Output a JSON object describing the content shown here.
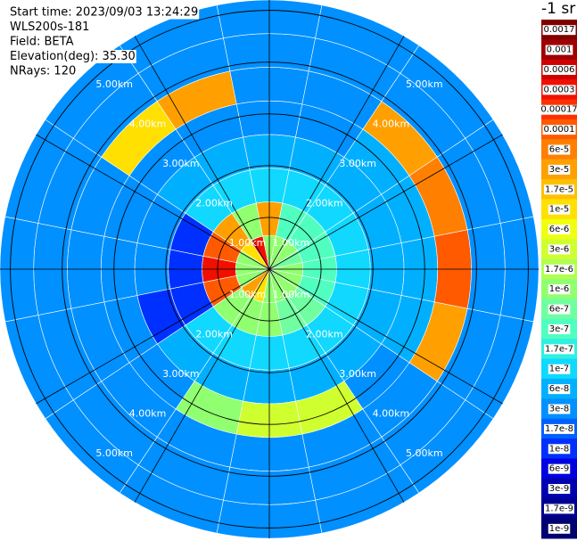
{
  "chart_data": {
    "type": "polar",
    "info": [
      "Start time: 2023/09/03 13:24:29",
      "WLS200s-181",
      "Field: BETA",
      "Elevation(deg): 35.30",
      "NRays: 120"
    ],
    "colorbar_title": "-1 sr",
    "theta": [
      0,
      22.5,
      45,
      67.5,
      90,
      112.5,
      135,
      157.5,
      180,
      202.5,
      225,
      247.5,
      270,
      292.5,
      315,
      337.5
    ],
    "r": [
      0,
      0.65,
      1.3,
      1.95,
      2.6,
      3.25,
      3.9,
      4.55
    ],
    "rlim": [
      0,
      5.2
    ],
    "rticks": [
      {
        "value": 1,
        "label": "1.00km"
      },
      {
        "value": 2,
        "label": "2.00km"
      },
      {
        "value": 3,
        "label": "3.00km"
      },
      {
        "value": 4,
        "label": "4.00km"
      },
      {
        "value": 5,
        "label": "5.00km"
      }
    ],
    "values": [
      [
        1e-06,
        3e-05,
        1e-07,
        6e-08,
        3e-08,
        3e-08,
        3e-08,
        3e-08
      ],
      [
        1e-06,
        3e-07,
        1e-07,
        6e-08,
        3e-08,
        3e-08,
        3e-08,
        3e-08
      ],
      [
        1e-06,
        3e-07,
        1e-07,
        6e-08,
        6e-08,
        3e-05,
        3e-08,
        3e-08
      ],
      [
        6e-07,
        3e-07,
        1e-07,
        6e-08,
        6e-08,
        6e-05,
        3e-08,
        3e-08
      ],
      [
        1e-06,
        3e-07,
        1e-07,
        6e-08,
        6e-08,
        0.0001,
        3e-08,
        3e-08
      ],
      [
        1e-06,
        3e-07,
        1e-07,
        6e-08,
        6e-08,
        3e-05,
        3e-08,
        3e-08
      ],
      [
        1e-06,
        6e-07,
        1e-07,
        6e-08,
        3e-08,
        3e-08,
        3e-08,
        3e-08
      ],
      [
        1e-06,
        6e-07,
        1e-07,
        6e-08,
        3e-06,
        3e-08,
        3e-08,
        3e-08
      ],
      [
        1e-06,
        1e-06,
        1e-07,
        6e-08,
        3e-06,
        3e-08,
        3e-08,
        3e-08
      ],
      [
        1e-05,
        1e-06,
        1e-07,
        6e-08,
        1e-06,
        3e-08,
        3e-08,
        3e-08
      ],
      [
        3e-05,
        1e-06,
        1e-07,
        6e-08,
        3e-08,
        3e-08,
        3e-08,
        3e-08
      ],
      [
        1e-06,
        0.0001,
        1e-08,
        1e-08,
        3e-08,
        3e-08,
        3e-08,
        3e-08
      ],
      [
        1e-06,
        0.0003,
        1e-08,
        3e-08,
        3e-08,
        3e-08,
        3e-08,
        3e-08
      ],
      [
        1e-06,
        0.0001,
        1e-08,
        3e-08,
        3e-08,
        3e-08,
        3e-08,
        3e-08
      ],
      [
        1e-05,
        3e-05,
        1e-07,
        6e-08,
        3e-08,
        1e-05,
        3e-08,
        3e-08
      ],
      [
        0.0003,
        1e-06,
        1e-07,
        6e-08,
        3e-08,
        3e-05,
        3e-08,
        3e-08
      ]
    ],
    "levels": [
      0.0017,
      0.001,
      0.0006,
      0.0003,
      0.00017,
      0.0001,
      {
        "value": 6e-05,
        "label": "6e-5"
      },
      {
        "value": 3e-05,
        "label": "3e-5"
      },
      {
        "value": 1.7e-05,
        "label": "1.7e-5"
      },
      {
        "value": 1e-05,
        "label": "1e-5"
      },
      {
        "value": 6e-06,
        "label": "6e-6"
      },
      {
        "value": 3e-06,
        "label": "3e-6"
      },
      {
        "value": 1.7e-06,
        "label": "1.7e-6"
      },
      {
        "value": 1e-06,
        "label": "1e-6"
      },
      {
        "value": 6e-07,
        "label": "6e-7"
      },
      {
        "value": 3e-07,
        "label": "3e-7"
      },
      {
        "value": 1.7e-07,
        "label": "1.7e-7"
      },
      {
        "value": 1e-07,
        "label": "1e-7"
      },
      {
        "value": 6e-08,
        "label": "6e-8"
      },
      {
        "value": 3e-08,
        "label": "3e-8"
      },
      {
        "value": 1.7e-08,
        "label": "1.7e-8"
      },
      {
        "value": 1e-08,
        "label": "1e-8"
      },
      {
        "value": 6e-09,
        "label": "6e-9"
      },
      {
        "value": 3e-09,
        "label": "3e-9"
      },
      {
        "value": 1.7e-09,
        "label": "1.7e-9"
      },
      {
        "value": 1e-09,
        "label": "1e-9"
      }
    ],
    "colors": [
      "#800000",
      "#a00000",
      "#d00000",
      "#f01000",
      "#ff3000",
      "#ff5a00",
      "#ff8000",
      "#ffa000",
      "#ffc000",
      "#ffe000",
      "#f0ff10",
      "#d0ff30",
      "#b0ff50",
      "#90ff70",
      "#70ffa0",
      "#50ffc0",
      "#30f0e0",
      "#10d8ff",
      "#00b0ff",
      "#0090ff",
      "#0060ff",
      "#0030ff",
      "#0000e0",
      "#0000b0",
      "#000090",
      "#000070"
    ]
  }
}
